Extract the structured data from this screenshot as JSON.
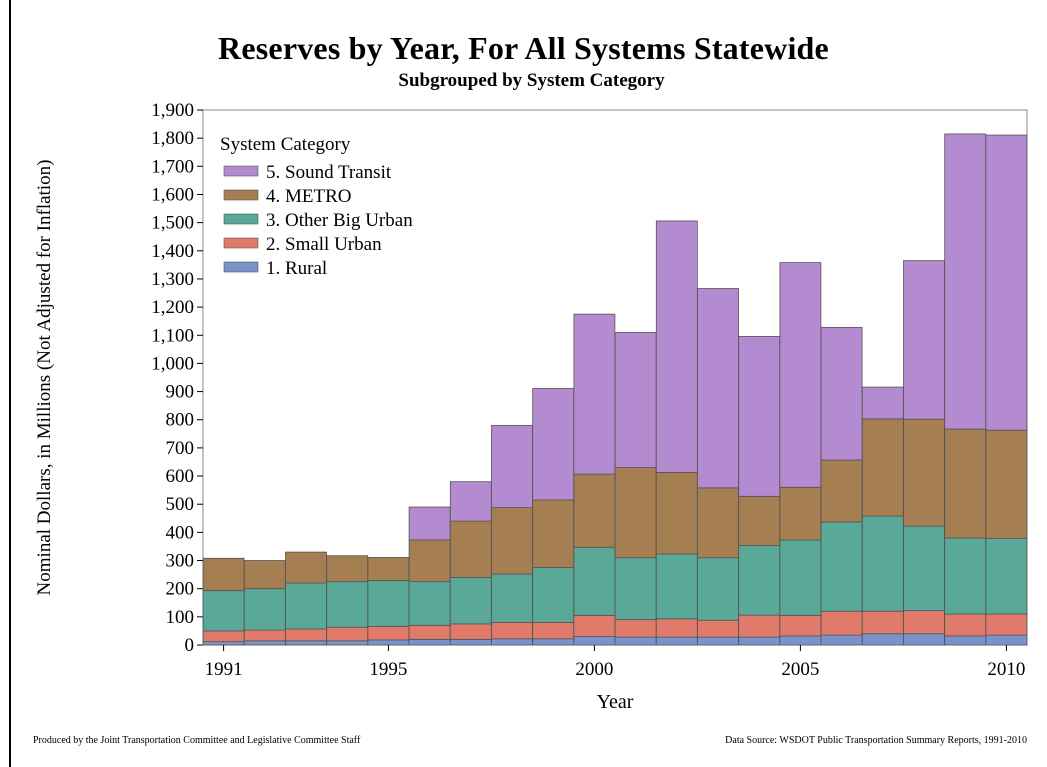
{
  "chart_data": {
    "type": "bar",
    "stacked": true,
    "title": "Reserves by Year, For All Systems Statewide",
    "subtitle": "Subgrouped by System Category",
    "xlabel": "Year",
    "ylabel": "Nominal Dollars, in Millions (Not Adjusted for Inflation)",
    "ylim": [
      0,
      1900
    ],
    "yticks": [
      "0",
      "100",
      "200",
      "300",
      "400",
      "500",
      "600",
      "700",
      "800",
      "900",
      "1,000",
      "1,100",
      "1,200",
      "1,300",
      "1,400",
      "1,500",
      "1,600",
      "1,700",
      "1,800",
      "1,900"
    ],
    "ytick_values": [
      0,
      100,
      200,
      300,
      400,
      500,
      600,
      700,
      800,
      900,
      1000,
      1100,
      1200,
      1300,
      1400,
      1500,
      1600,
      1700,
      1800,
      1900
    ],
    "xtick_labels": [
      "1991",
      "1995",
      "2000",
      "2005",
      "2010"
    ],
    "categories": [
      "1991",
      "1992",
      "1993",
      "1994",
      "1995",
      "1996",
      "1997",
      "1998",
      "1999",
      "2000",
      "2001",
      "2002",
      "2003",
      "2004",
      "2005",
      "2006",
      "2007",
      "2008",
      "2009",
      "2010"
    ],
    "legend_title": "System Category",
    "legend_position": "top-left",
    "series": [
      {
        "name": "1. Rural",
        "color": "#7b93cc",
        "values": [
          12,
          15,
          15,
          15,
          18,
          20,
          20,
          22,
          22,
          30,
          28,
          28,
          28,
          28,
          32,
          35,
          40,
          40,
          32,
          35
        ]
      },
      {
        "name": "2. Small Urban",
        "color": "#e07b6b",
        "values": [
          38,
          38,
          42,
          48,
          48,
          50,
          55,
          58,
          58,
          75,
          62,
          65,
          60,
          78,
          73,
          85,
          80,
          82,
          78,
          75
        ]
      },
      {
        "name": "3. Other Big Urban",
        "color": "#5aa898",
        "values": [
          143,
          147,
          163,
          162,
          163,
          155,
          165,
          172,
          195,
          242,
          220,
          230,
          222,
          247,
          268,
          317,
          338,
          300,
          270,
          268
        ]
      },
      {
        "name": "4. METRO",
        "color": "#a57e51",
        "values": [
          115,
          100,
          110,
          92,
          82,
          148,
          200,
          236,
          240,
          260,
          320,
          290,
          248,
          175,
          187,
          220,
          345,
          380,
          387,
          385
        ]
      },
      {
        "name": "5. Sound Transit",
        "color": "#b48bd0",
        "values": [
          0,
          0,
          0,
          0,
          0,
          117,
          140,
          292,
          396,
          568,
          480,
          893,
          708,
          568,
          798,
          471,
          113,
          563,
          1048,
          1048
        ]
      }
    ],
    "grid": false
  },
  "footer": {
    "left": "Produced by the Joint Transportation Committee and Legislative Committee Staff",
    "right": "Data Source: WSDOT Public Transportation Summary Reports, 1991-2010"
  }
}
